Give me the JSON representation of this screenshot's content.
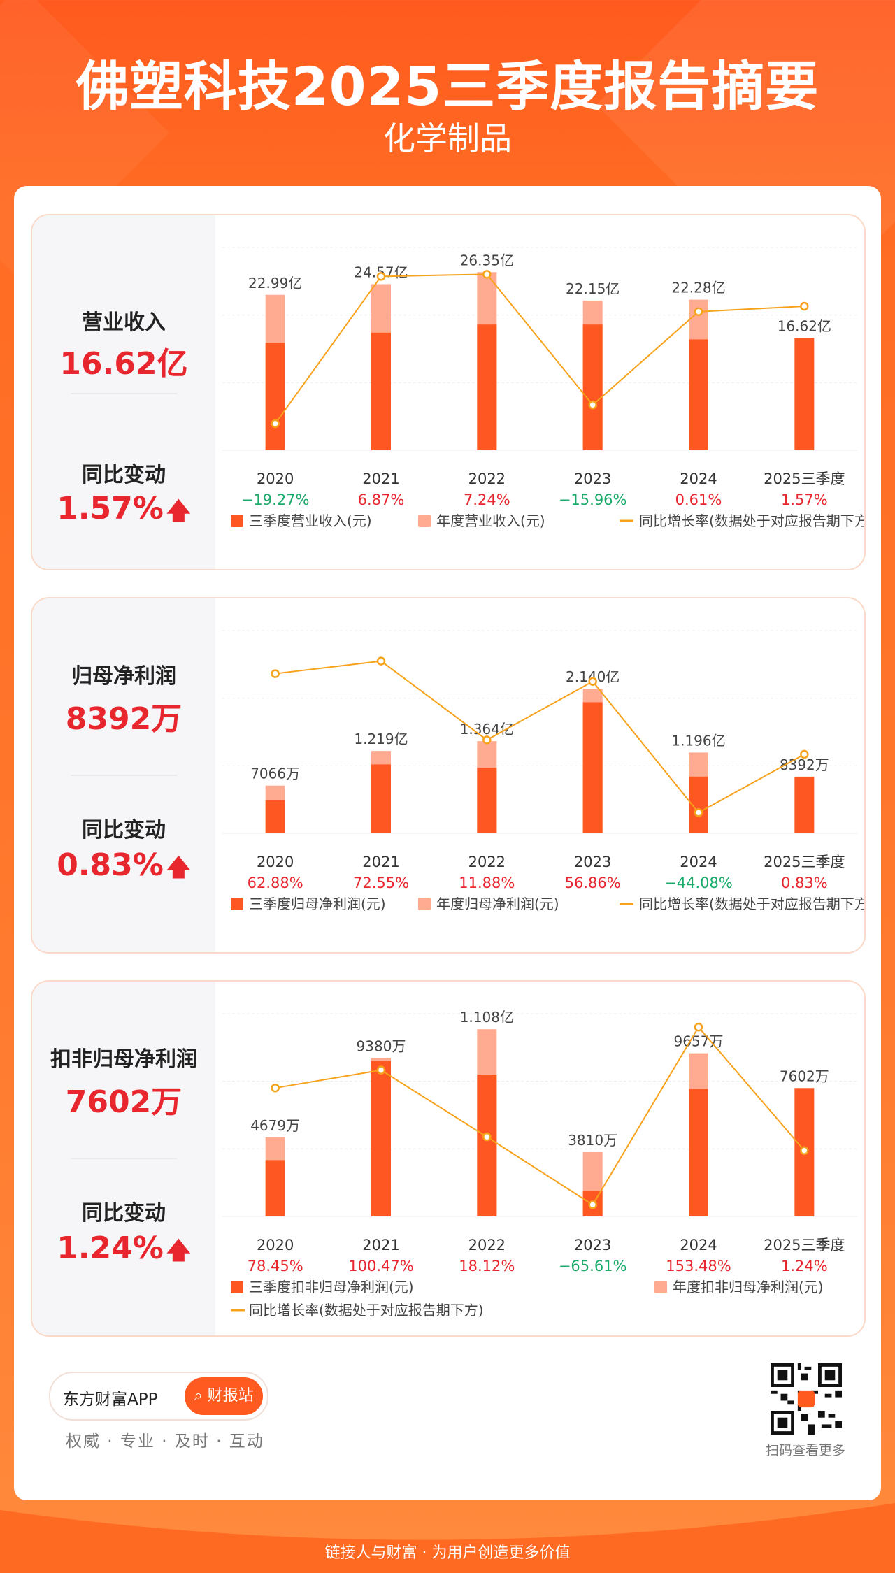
{
  "header": {
    "title": "佛塑科技2025三季度报告摘要",
    "subtitle": "化学制品"
  },
  "panels": [
    {
      "label": "营业收入",
      "value": "16.62亿",
      "change_label": "同比变动",
      "change": "1.57%",
      "legend": [
        "三季度营业收入(元)",
        "年度营业收入(元)",
        "同比增长率(数据处于对应报告期下方)"
      ]
    },
    {
      "label": "归母净利润",
      "value": "8392万",
      "change_label": "同比变动",
      "change": "0.83%",
      "legend": [
        "三季度归母净利润(元)",
        "年度归母净利润(元)",
        "同比增长率(数据处于对应报告期下方)"
      ]
    },
    {
      "label": "扣非归母净利润",
      "value": "7602万",
      "change_label": "同比变动",
      "change": "1.24%",
      "legend": [
        "三季度扣非归母净利润(元)",
        "年度扣非归母净利润(元)",
        "同比增长率(数据处于对应报告期下方)"
      ]
    }
  ],
  "chart_data": [
    {
      "type": "bar",
      "categories": [
        "2020",
        "2021",
        "2022",
        "2023",
        "2024",
        "2025三季度"
      ],
      "series": [
        {
          "name": "三季度营业收入(元)",
          "values": [
            15.9,
            17.4,
            18.6,
            18.6,
            16.4,
            16.62
          ]
        },
        {
          "name": "年度营业收入(元)",
          "values": [
            22.99,
            24.57,
            26.35,
            22.15,
            22.28,
            null
          ]
        }
      ],
      "bar_labels": [
        "22.99亿",
        "24.57亿",
        "26.35亿",
        "22.15亿",
        "22.28亿",
        "16.62亿"
      ],
      "growth": [
        "-19.27%",
        "6.87%",
        "7.24%",
        "-15.96%",
        "0.61%",
        "1.57%"
      ],
      "growth_values": [
        -19.27,
        6.87,
        7.24,
        -15.96,
        0.61,
        1.57
      ],
      "ylim": [
        0,
        30
      ],
      "growth_ylim": [
        -24,
        12
      ]
    },
    {
      "type": "bar",
      "categories": [
        "2020",
        "2021",
        "2022",
        "2023",
        "2024",
        "2025三季度"
      ],
      "series": [
        {
          "name": "三季度归母净利润(元)",
          "values": [
            0.49,
            1.02,
            0.97,
            1.94,
            0.84,
            0.8392
          ]
        },
        {
          "name": "年度归母净利润(元)",
          "values": [
            0.7066,
            1.219,
            1.364,
            2.14,
            1.196,
            null
          ]
        }
      ],
      "bar_labels": [
        "7066万",
        "1.219亿",
        "1.364亿",
        "2.140亿",
        "1.196亿",
        "8392万"
      ],
      "growth": [
        "62.88%",
        "72.55%",
        "11.88%",
        "56.86%",
        "-44.08%",
        "0.83%"
      ],
      "growth_values": [
        62.88,
        72.55,
        11.88,
        56.86,
        -44.08,
        0.83
      ],
      "ylim": [
        0,
        3
      ],
      "growth_ylim": [
        -60,
        96
      ]
    },
    {
      "type": "bar",
      "categories": [
        "2020",
        "2021",
        "2022",
        "2023",
        "2024",
        "2025三季度"
      ],
      "series": [
        {
          "name": "三季度扣非归母净利润(元)",
          "values": [
            0.3335,
            0.92,
            0.84,
            0.15,
            0.755,
            0.7602
          ]
        },
        {
          "name": "年度扣非归母净利润(元)",
          "values": [
            0.4679,
            0.938,
            1.108,
            0.381,
            0.9657,
            null
          ]
        }
      ],
      "bar_labels": [
        "4679万",
        "9380万",
        "1.108亿",
        "3810万",
        "9657万",
        "7602万"
      ],
      "growth": [
        "78.45%",
        "100.47%",
        "18.12%",
        "-65.61%",
        "153.48%",
        "1.24%"
      ],
      "growth_values": [
        78.45,
        100.47,
        18.12,
        -65.61,
        153.48,
        1.24
      ],
      "ylim": [
        0,
        1.2
      ],
      "growth_ylim": [
        -80,
        170
      ]
    }
  ],
  "footer": {
    "app": "东方财富APP",
    "btn": "财报站",
    "slogan": "权威 · 专业 · 及时 · 互动",
    "qr_text": "扫码查看更多",
    "bottom": "链接人与财富 · 为用户创造更多价值"
  },
  "colors": {
    "bar_q": "#ff5722",
    "bar_year": "#ffab91",
    "line": "#f7a21b",
    "brand": "#ff5a1f"
  }
}
